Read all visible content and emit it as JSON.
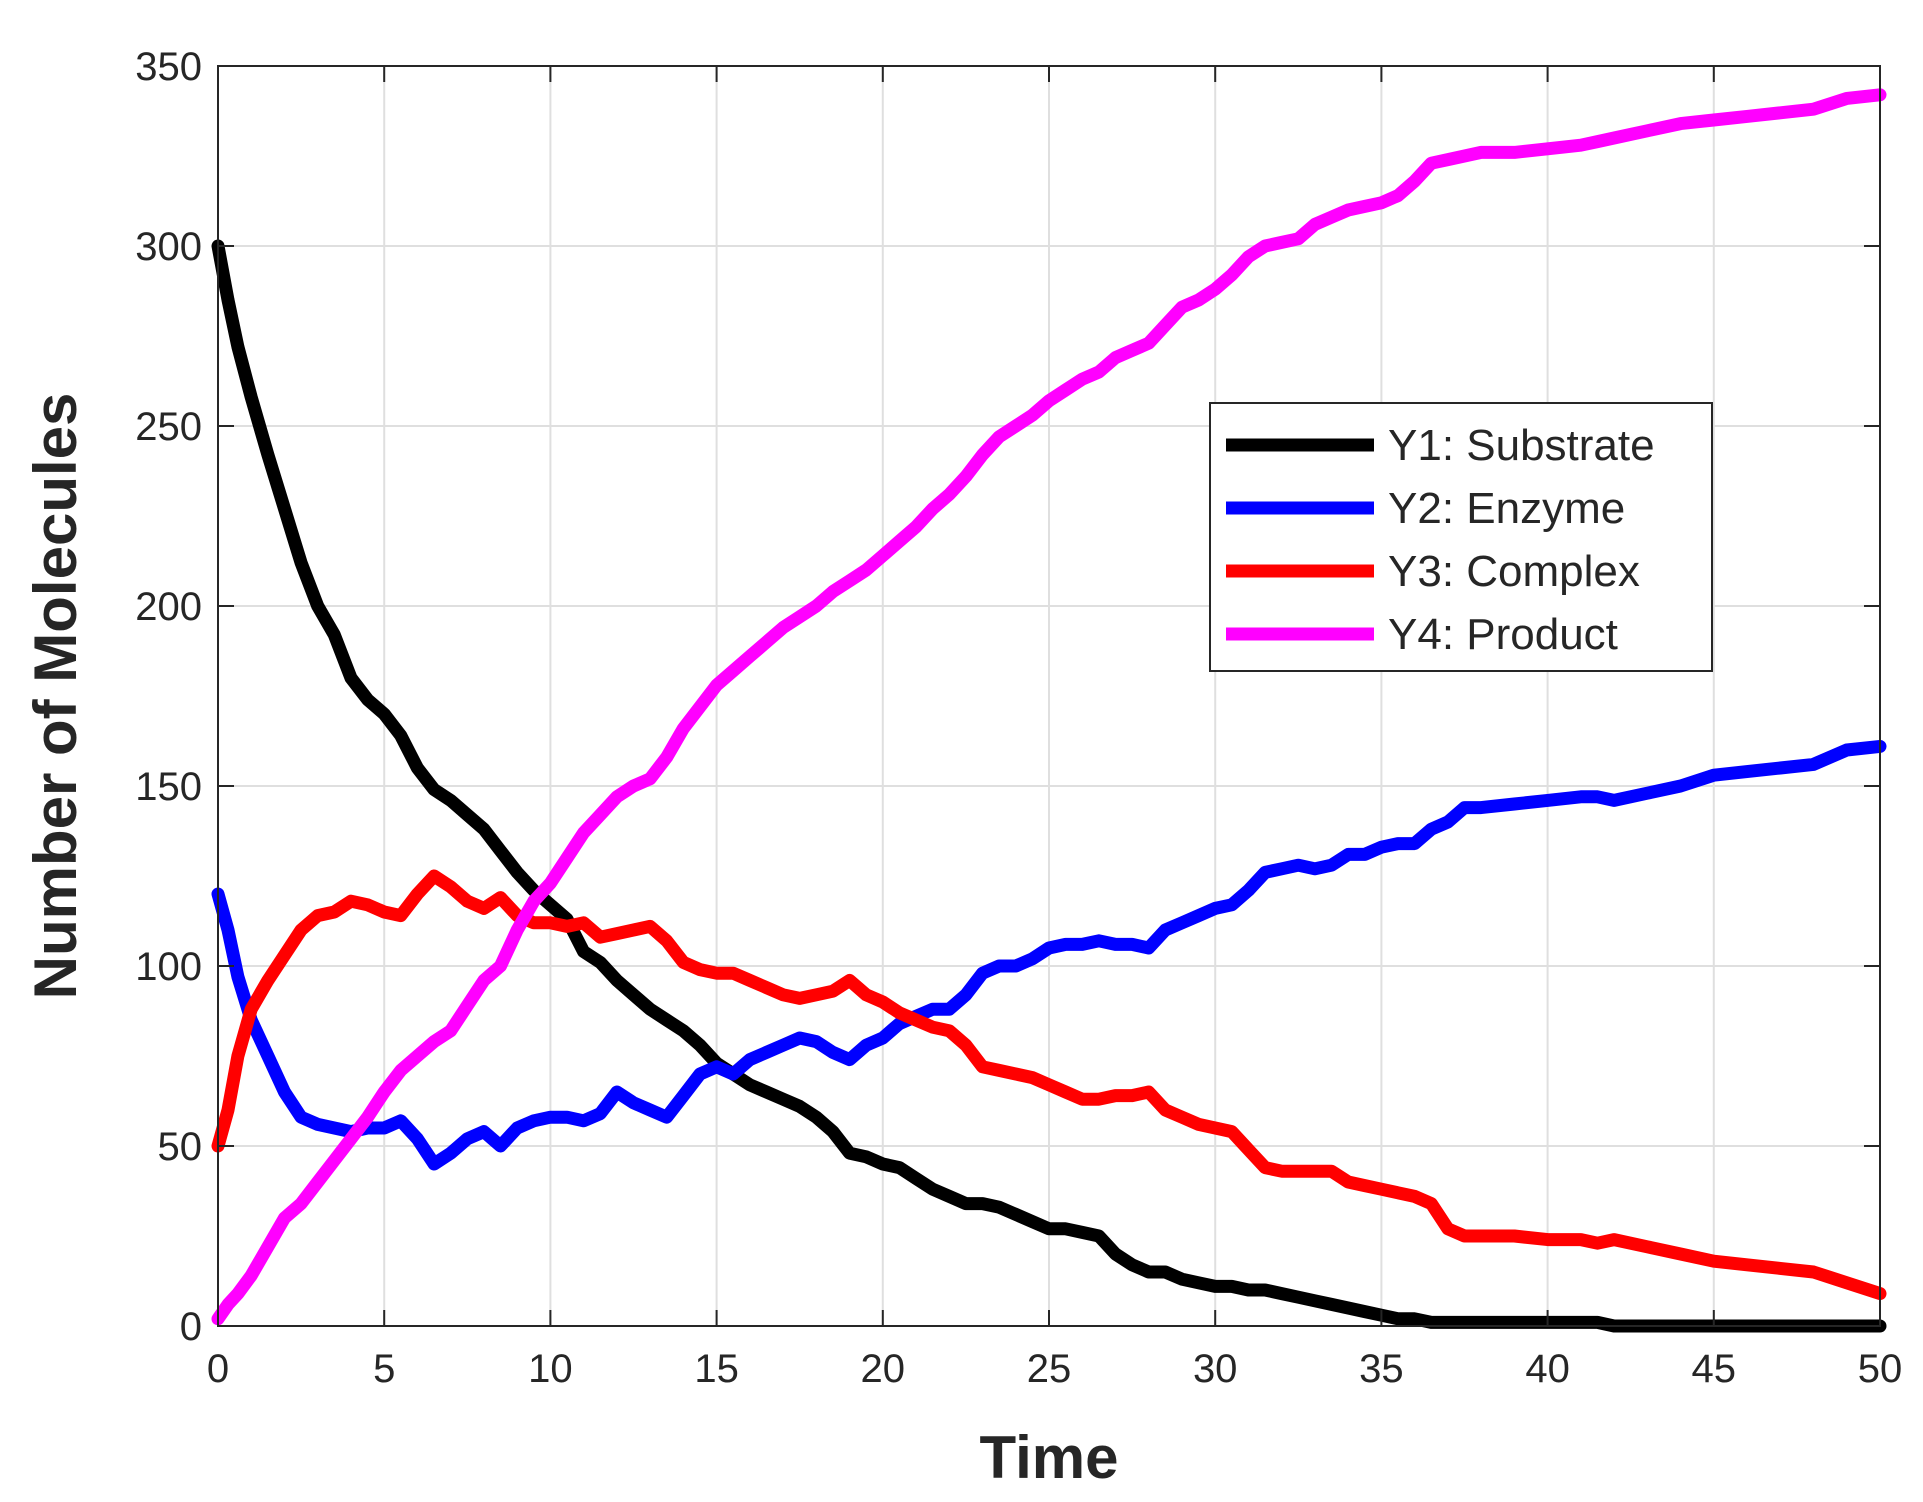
{
  "chart_data": {
    "type": "line",
    "title": "",
    "xlabel": "Time",
    "ylabel": "Number of Molecules",
    "xlim": [
      0,
      50
    ],
    "ylim": [
      0,
      350
    ],
    "xticks": [
      0,
      5,
      10,
      15,
      20,
      25,
      30,
      35,
      40,
      45,
      50
    ],
    "yticks": [
      0,
      50,
      100,
      150,
      200,
      250,
      300,
      350
    ],
    "xtick_labels": [
      "0",
      "5",
      "10",
      "15",
      "20",
      "25",
      "30",
      "35",
      "40",
      "45",
      "50"
    ],
    "ytick_labels": [
      "0",
      "50",
      "100",
      "150",
      "200",
      "250",
      "300",
      "350"
    ],
    "grid": true,
    "legend_position": "upper-right",
    "series": [
      {
        "name": "Y1: Substrate",
        "color": "#000000",
        "x": [
          0,
          0.3,
          0.6,
          1,
          1.5,
          2,
          2.5,
          3,
          3.5,
          4,
          4.5,
          5,
          5.5,
          6,
          6.5,
          7,
          7.5,
          8,
          8.5,
          9,
          9.5,
          10,
          10.5,
          11,
          11.5,
          12,
          12.5,
          13,
          13.5,
          14,
          14.5,
          15,
          15.5,
          16,
          16.5,
          17,
          17.5,
          18,
          18.5,
          19,
          19.5,
          20,
          20.5,
          21,
          21.5,
          22,
          22.5,
          23,
          23.5,
          24,
          24.5,
          25,
          25.5,
          26,
          26.5,
          27,
          27.5,
          28,
          28.5,
          29,
          29.5,
          30,
          30.5,
          31,
          31.5,
          32,
          32.5,
          33,
          33.5,
          34,
          34.5,
          35,
          35.5,
          36,
          36.5,
          37,
          37.5,
          38,
          39,
          40,
          41,
          41.5,
          42,
          43,
          44,
          45,
          46,
          47,
          48,
          49,
          50
        ],
        "y": [
          300,
          285,
          272,
          258,
          242,
          227,
          212,
          200,
          192,
          180,
          174,
          170,
          164,
          155,
          149,
          146,
          142,
          138,
          132,
          126,
          121,
          117,
          113,
          104,
          101,
          96,
          92,
          88,
          85,
          82,
          78,
          73,
          70,
          67,
          65,
          63,
          61,
          58,
          54,
          48,
          47,
          45,
          44,
          41,
          38,
          36,
          34,
          34,
          33,
          31,
          29,
          27,
          27,
          26,
          25,
          20,
          17,
          15,
          15,
          13,
          12,
          11,
          11,
          10,
          10,
          9,
          8,
          7,
          6,
          5,
          4,
          3,
          2,
          2,
          1,
          1,
          1,
          1,
          1,
          1,
          1,
          1,
          0,
          0,
          0,
          0,
          0,
          0,
          0,
          0,
          0
        ]
      },
      {
        "name": "Y2: Enzyme",
        "color": "#0000ff",
        "x": [
          0,
          0.3,
          0.6,
          1,
          1.5,
          2,
          2.5,
          3,
          3.5,
          4,
          4.5,
          5,
          5.5,
          6,
          6.5,
          7,
          7.5,
          8,
          8.5,
          9,
          9.5,
          10,
          10.5,
          11,
          11.5,
          12,
          12.5,
          13,
          13.5,
          14,
          14.5,
          15,
          15.5,
          16,
          16.5,
          17,
          17.5,
          18,
          18.5,
          19,
          19.5,
          20,
          20.5,
          21,
          21.5,
          22,
          22.5,
          23,
          23.5,
          24,
          24.5,
          25,
          25.5,
          26,
          26.5,
          27,
          27.5,
          28,
          28.5,
          29,
          29.5,
          30,
          30.5,
          31,
          31.5,
          32,
          32.5,
          33,
          33.5,
          34,
          34.5,
          35,
          35.5,
          36,
          36.5,
          37,
          37.5,
          38,
          39,
          40,
          41,
          41.5,
          42,
          43,
          44,
          45,
          46,
          47,
          48,
          49,
          50
        ],
        "y": [
          120,
          110,
          97,
          85,
          75,
          65,
          58,
          56,
          55,
          54,
          55,
          55,
          57,
          52,
          45,
          48,
          52,
          54,
          50,
          55,
          57,
          58,
          58,
          57,
          59,
          65,
          62,
          60,
          58,
          64,
          70,
          72,
          70,
          74,
          76,
          78,
          80,
          79,
          76,
          74,
          78,
          80,
          84,
          86,
          88,
          88,
          92,
          98,
          100,
          100,
          102,
          105,
          106,
          106,
          107,
          106,
          106,
          105,
          110,
          112,
          114,
          116,
          117,
          121,
          126,
          127,
          128,
          127,
          128,
          131,
          131,
          133,
          134,
          134,
          138,
          140,
          144,
          144,
          145,
          146,
          147,
          147,
          146,
          148,
          150,
          153,
          154,
          155,
          156,
          160,
          161
        ]
      },
      {
        "name": "Y3: Complex",
        "color": "#ff0000",
        "x": [
          0,
          0.3,
          0.6,
          1,
          1.5,
          2,
          2.5,
          3,
          3.5,
          4,
          4.5,
          5,
          5.5,
          6,
          6.5,
          7,
          7.5,
          8,
          8.5,
          9,
          9.5,
          10,
          10.5,
          11,
          11.5,
          12,
          12.5,
          13,
          13.5,
          14,
          14.5,
          15,
          15.5,
          16,
          16.5,
          17,
          17.5,
          18,
          18.5,
          19,
          19.5,
          20,
          20.5,
          21,
          21.5,
          22,
          22.5,
          23,
          23.5,
          24,
          24.5,
          25,
          25.5,
          26,
          26.5,
          27,
          27.5,
          28,
          28.5,
          29,
          29.5,
          30,
          30.5,
          31,
          31.5,
          32,
          32.5,
          33,
          33.5,
          34,
          34.5,
          35,
          35.5,
          36,
          36.5,
          37,
          37.5,
          38,
          39,
          40,
          41,
          41.5,
          42,
          43,
          44,
          45,
          46,
          47,
          48,
          49,
          50
        ],
        "y": [
          50,
          60,
          75,
          88,
          96,
          103,
          110,
          114,
          115,
          118,
          117,
          115,
          114,
          120,
          125,
          122,
          118,
          116,
          119,
          114,
          112,
          112,
          111,
          112,
          108,
          109,
          110,
          111,
          107,
          101,
          99,
          98,
          98,
          96,
          94,
          92,
          91,
          92,
          93,
          96,
          92,
          90,
          87,
          85,
          83,
          82,
          78,
          72,
          71,
          70,
          69,
          67,
          65,
          63,
          63,
          64,
          64,
          65,
          60,
          58,
          56,
          55,
          54,
          49,
          44,
          43,
          43,
          43,
          43,
          40,
          39,
          38,
          37,
          36,
          34,
          27,
          25,
          25,
          25,
          24,
          24,
          23,
          24,
          22,
          20,
          18,
          17,
          16,
          15,
          12,
          9
        ]
      },
      {
        "name": "Y4: Product",
        "color": "#ff00ff",
        "x": [
          0,
          0.3,
          0.6,
          1,
          1.5,
          2,
          2.5,
          3,
          3.5,
          4,
          4.5,
          5,
          5.5,
          6,
          6.5,
          7,
          7.5,
          8,
          8.5,
          9,
          9.5,
          10,
          10.5,
          11,
          11.5,
          12,
          12.5,
          13,
          13.5,
          14,
          14.5,
          15,
          15.5,
          16,
          16.5,
          17,
          17.5,
          18,
          18.5,
          19,
          19.5,
          20,
          20.5,
          21,
          21.5,
          22,
          22.5,
          23,
          23.5,
          24,
          24.5,
          25,
          25.5,
          26,
          26.5,
          27,
          27.5,
          28,
          28.5,
          29,
          29.5,
          30,
          30.5,
          31,
          31.5,
          32,
          32.5,
          33,
          33.5,
          34,
          34.5,
          35,
          35.5,
          36,
          36.5,
          37,
          37.5,
          38,
          39,
          40,
          41,
          41.5,
          42,
          43,
          44,
          45,
          46,
          47,
          48,
          49,
          50
        ],
        "y": [
          2,
          6,
          9,
          14,
          22,
          30,
          34,
          40,
          46,
          52,
          58,
          65,
          71,
          75,
          79,
          82,
          89,
          96,
          100,
          110,
          118,
          123,
          130,
          137,
          142,
          147,
          150,
          152,
          158,
          166,
          172,
          178,
          182,
          186,
          190,
          194,
          197,
          200,
          204,
          207,
          210,
          214,
          218,
          222,
          227,
          231,
          236,
          242,
          247,
          250,
          253,
          257,
          260,
          263,
          265,
          269,
          271,
          273,
          278,
          283,
          285,
          288,
          292,
          297,
          300,
          301,
          302,
          306,
          308,
          310,
          311,
          312,
          314,
          318,
          323,
          324,
          325,
          326,
          326,
          327,
          328,
          329,
          330,
          332,
          334,
          335,
          336,
          337,
          338,
          341,
          342
        ]
      }
    ]
  }
}
